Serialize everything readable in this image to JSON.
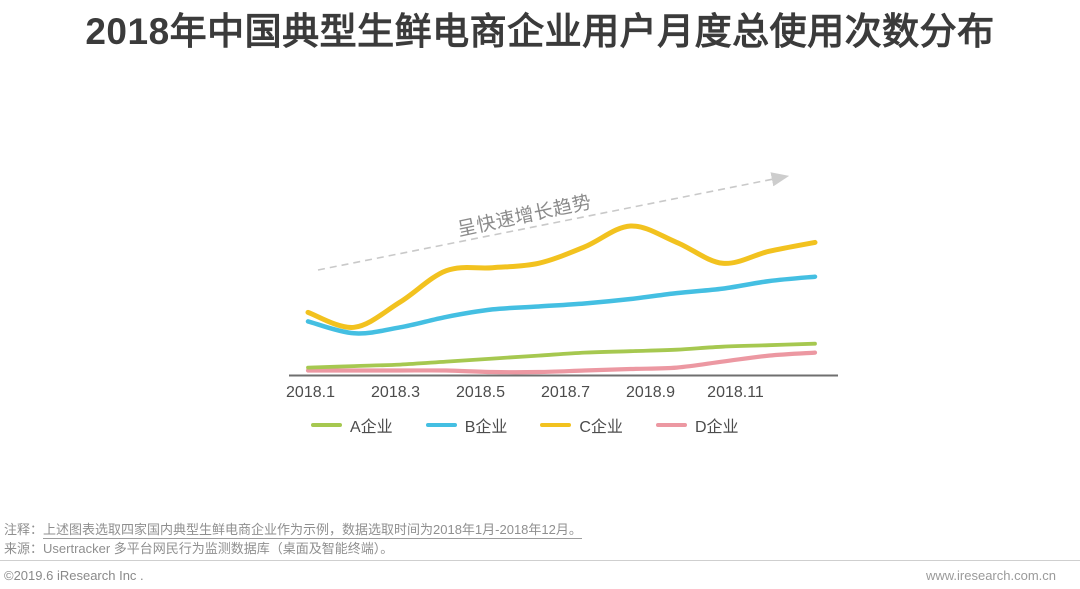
{
  "page": {
    "title": "2018年中国典型生鲜电商企业用户月度总使用次数分布"
  },
  "chart_data": {
    "type": "line",
    "title": "2018年中国典型生鲜电商企业用户月度总使用次数分布",
    "x": [
      "2018.1",
      "2018.2",
      "2018.3",
      "2018.4",
      "2018.5",
      "2018.6",
      "2018.7",
      "2018.8",
      "2018.9",
      "2018.10",
      "2018.11",
      "2018.12"
    ],
    "x_tick_labels": [
      "2018.1",
      "2018.3",
      "2018.5",
      "2018.7",
      "2018.9",
      "2018.11"
    ],
    "series": [
      {
        "name": "A企业",
        "color": "#a6c850",
        "values": [
          5,
          6,
          7,
          9,
          11,
          13,
          15,
          16,
          17,
          19,
          20,
          21
        ]
      },
      {
        "name": "B企业",
        "color": "#44bfe2",
        "values": [
          36,
          28,
          32,
          39,
          44,
          46,
          48,
          51,
          55,
          58,
          63,
          66
        ]
      },
      {
        "name": "C企业",
        "color": "#f2c21f",
        "values": [
          42,
          32,
          49,
          70,
          72,
          75,
          86,
          100,
          89,
          75,
          83,
          89
        ]
      },
      {
        "name": "D企业",
        "color": "#ec98a2",
        "values": [
          3,
          3,
          3,
          3,
          2,
          2,
          3,
          4,
          5,
          9,
          13,
          15
        ]
      }
    ],
    "annotation": "呈快速增长趋势",
    "annotation_arrow": {
      "style": "dashed",
      "color": "#c9c9c9",
      "direction": "up-right"
    },
    "xlabel": "",
    "ylabel": "",
    "ylim": [
      0,
      110
    ],
    "y_axis_shown": false,
    "grid": false,
    "legend_position": "bottom",
    "values_unit": "relative usage index (no y-axis scale shown)"
  },
  "notes": {
    "note_label": "注释：",
    "note_text": "上述图表选取四家国内典型生鲜电商企业作为示例，数据选取时间为2018年1月-2018年12月。",
    "source_label": "来源：",
    "source_text": "Usertracker 多平台网民行为监测数据库（桌面及智能终端）。"
  },
  "footer": {
    "copyright": "©2019.6 iResearch Inc .",
    "website": "www.iresearch.com.cn"
  }
}
